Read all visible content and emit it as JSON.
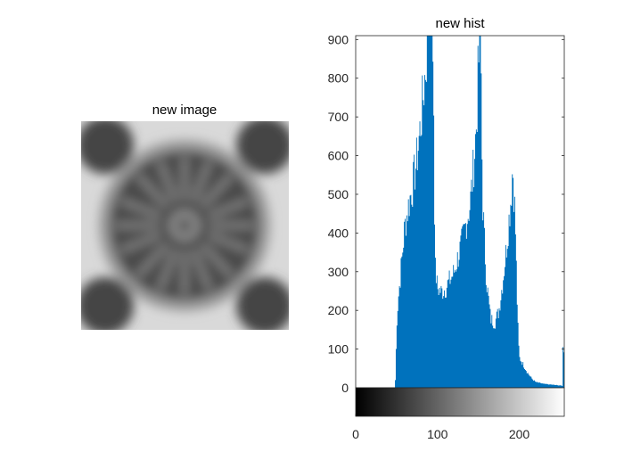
{
  "figure": {
    "left_panel": {
      "title": "new image",
      "kind": "grayscale image (blurred circular wheel pattern with spokes)"
    },
    "right_panel": {
      "title": "new hist"
    }
  },
  "colors": {
    "bar": "#0072BD",
    "axis": "#262626",
    "background": "#ffffff"
  },
  "chart_data": {
    "type": "bar",
    "title": "new hist",
    "xlabel": "",
    "ylabel": "",
    "xlim": [
      0,
      255
    ],
    "ylim": [
      0,
      910
    ],
    "x_ticks": [
      0,
      100,
      200
    ],
    "y_ticks": [
      0,
      100,
      200,
      300,
      400,
      500,
      600,
      700,
      800,
      900
    ],
    "colorbar": "grayscale 0 (black) to 255 (white)",
    "envelope": {
      "x": [
        0,
        48,
        49,
        50,
        52,
        55,
        60,
        65,
        70,
        75,
        80,
        85,
        88,
        90,
        92,
        94,
        95,
        96,
        97,
        98,
        100,
        105,
        110,
        120,
        130,
        140,
        145,
        148,
        150,
        152,
        153,
        154,
        155,
        158,
        160,
        165,
        170,
        175,
        180,
        185,
        190,
        192,
        195,
        198,
        200,
        205,
        210,
        215,
        220,
        230,
        240,
        250,
        253,
        254,
        255
      ],
      "y": [
        0,
        0,
        40,
        160,
        230,
        300,
        420,
        480,
        530,
        600,
        700,
        820,
        910,
        910,
        910,
        910,
        850,
        620,
        320,
        300,
        260,
        250,
        260,
        300,
        380,
        480,
        600,
        700,
        840,
        910,
        910,
        700,
        500,
        360,
        280,
        180,
        170,
        200,
        280,
        380,
        500,
        580,
        450,
        180,
        80,
        60,
        40,
        25,
        15,
        10,
        8,
        6,
        5,
        200,
        0
      ]
    }
  }
}
